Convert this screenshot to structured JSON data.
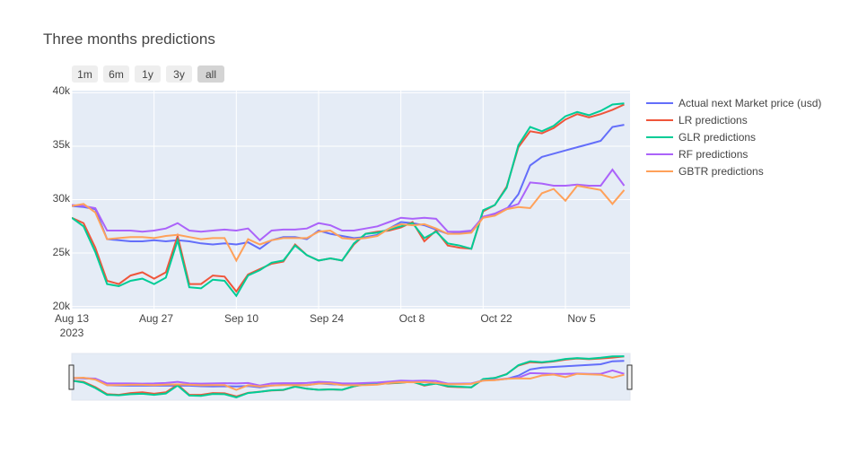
{
  "chart_data": {
    "type": "line",
    "title": "Three months predictions",
    "xlabel": "",
    "ylabel": "",
    "range_buttons": [
      "1m",
      "6m",
      "1y",
      "3y",
      "all"
    ],
    "active_button": "all",
    "x_ticks": [
      "Aug 13",
      "Aug 27",
      "Sep 10",
      "Sep 24",
      "Oct 8",
      "Oct 22",
      "Nov 5"
    ],
    "x_tick_year": "2023",
    "y_ticks": [
      "20k",
      "25k",
      "30k",
      "35k",
      "40k"
    ],
    "ylim": [
      19800,
      40200
    ],
    "xlim": [
      "2023-08-13",
      "2023-11-16"
    ],
    "legend_position": "right",
    "grid": true,
    "colors": {
      "plot_bg": "#e5ecf6",
      "grid": "#ffffff",
      "text": "#444444"
    },
    "x": [
      "2023-08-13",
      "2023-08-15",
      "2023-08-17",
      "2023-08-19",
      "2023-08-21",
      "2023-08-23",
      "2023-08-25",
      "2023-08-27",
      "2023-08-29",
      "2023-08-31",
      "2023-09-02",
      "2023-09-04",
      "2023-09-06",
      "2023-09-08",
      "2023-09-10",
      "2023-09-12",
      "2023-09-14",
      "2023-09-16",
      "2023-09-18",
      "2023-09-20",
      "2023-09-22",
      "2023-09-24",
      "2023-09-26",
      "2023-09-28",
      "2023-09-30",
      "2023-10-02",
      "2023-10-04",
      "2023-10-06",
      "2023-10-08",
      "2023-10-10",
      "2023-10-12",
      "2023-10-14",
      "2023-10-16",
      "2023-10-18",
      "2023-10-20",
      "2023-10-22",
      "2023-10-24",
      "2023-10-26",
      "2023-10-28",
      "2023-10-30",
      "2023-11-01",
      "2023-11-03",
      "2023-11-05",
      "2023-11-07",
      "2023-11-09",
      "2023-11-11",
      "2023-11-13",
      "2023-11-15"
    ],
    "series": [
      {
        "name": "Actual next Market price (usd)",
        "color": "#636efa",
        "values": [
          29400,
          29300,
          29100,
          26300,
          26200,
          26100,
          26100,
          26200,
          26100,
          26200,
          26100,
          25900,
          25800,
          25900,
          25800,
          26000,
          25400,
          26200,
          26500,
          26500,
          26300,
          27100,
          26800,
          26600,
          26400,
          26500,
          26700,
          27300,
          27900,
          27800,
          27600,
          27200,
          26800,
          26900,
          27000,
          28400,
          28600,
          29100,
          30500,
          33200,
          34000,
          34300,
          34600,
          34900,
          35200,
          35500,
          36800,
          37000
        ]
      },
      {
        "name": "LR predictions",
        "color": "#ef553b",
        "values": [
          28300,
          27800,
          25500,
          22400,
          22100,
          22900,
          23200,
          22600,
          23200,
          26600,
          22100,
          22100,
          22900,
          22800,
          21400,
          23000,
          23500,
          24000,
          24200,
          25800,
          24800,
          24300,
          24500,
          24300,
          25800,
          26800,
          27000,
          27100,
          27400,
          27900,
          26100,
          27100,
          25700,
          25500,
          25400,
          28900,
          29500,
          31200,
          34900,
          36400,
          36200,
          36700,
          37500,
          38000,
          37700,
          38000,
          38400,
          38900
        ]
      },
      {
        "name": "GLR predictions",
        "color": "#00cc96",
        "values": [
          28300,
          27500,
          25100,
          22100,
          21900,
          22400,
          22600,
          22100,
          22700,
          26200,
          21800,
          21700,
          22500,
          22400,
          21000,
          22900,
          23400,
          24100,
          24300,
          25700,
          24800,
          24300,
          24500,
          24300,
          25900,
          26800,
          26900,
          27200,
          27500,
          27800,
          26400,
          27000,
          25900,
          25700,
          25400,
          29000,
          29500,
          31100,
          35100,
          36800,
          36400,
          36900,
          37800,
          38200,
          37900,
          38300,
          38900,
          39000
        ]
      },
      {
        "name": "RF predictions",
        "color": "#ab63fa",
        "values": [
          29500,
          29400,
          29200,
          27100,
          27100,
          27100,
          27000,
          27100,
          27300,
          27800,
          27100,
          27000,
          27100,
          27200,
          27100,
          27300,
          26200,
          27100,
          27200,
          27200,
          27300,
          27800,
          27600,
          27100,
          27100,
          27300,
          27500,
          27900,
          28300,
          28200,
          28300,
          28200,
          27000,
          27000,
          27100,
          28400,
          28700,
          29200,
          29600,
          31600,
          31500,
          31300,
          31300,
          31400,
          31300,
          31300,
          32800,
          31300
        ]
      },
      {
        "name": "GBTR predictions",
        "color": "#ffa15a",
        "values": [
          29400,
          29600,
          28800,
          26300,
          26400,
          26500,
          26500,
          26400,
          26600,
          26700,
          26500,
          26300,
          26400,
          26400,
          24300,
          26300,
          25800,
          26200,
          26400,
          26400,
          26400,
          27000,
          27100,
          26400,
          26300,
          26400,
          26600,
          27300,
          27700,
          27600,
          27700,
          27300,
          26800,
          26800,
          26900,
          28300,
          28500,
          29100,
          29300,
          29200,
          30600,
          31000,
          29900,
          31300,
          31100,
          30900,
          29600,
          30900
        ]
      }
    ]
  }
}
